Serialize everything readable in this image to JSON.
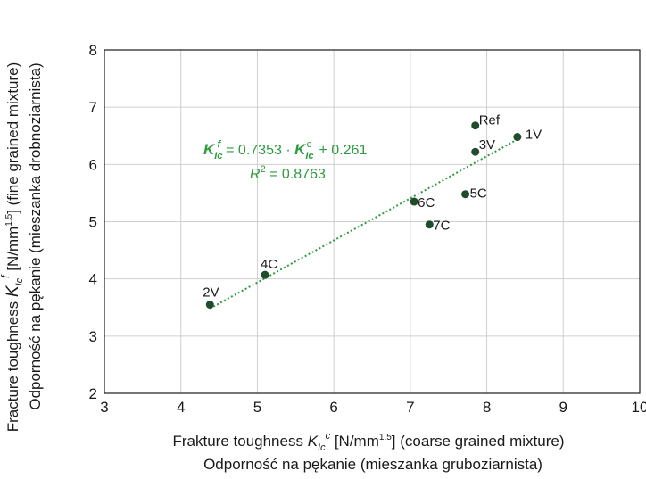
{
  "chart_data": {
    "type": "scatter",
    "title": "",
    "xlabel_line1_prefix": "Frakture toughness ",
    "xlabel_symbol": "K",
    "xlabel_sub": "Ic",
    "xlabel_sup": "c",
    "xlabel_line1_unit": " [N/mm",
    "xlabel_line1_exp": "1.5",
    "xlabel_line1_suffix": "] (coarse grained mixture)",
    "xlabel_line2": "Odporność na pękanie (mieszanka gruboziarnista)",
    "ylabel_line1_prefix": "Fracture toughness ",
    "ylabel_symbol": "K",
    "ylabel_sub": "Ic",
    "ylabel_sup": "f",
    "ylabel_line1_unit": " [N/mm",
    "ylabel_line1_exp": "1.5",
    "ylabel_line1_suffix": "] (fine grained mixture)",
    "ylabel_line2": "Odporność na pękanie (mieszanka drobnoziarnista)",
    "xlim": [
      3,
      10
    ],
    "ylim": [
      2,
      8
    ],
    "xticks": [
      3,
      4,
      5,
      6,
      7,
      8,
      9,
      10
    ],
    "yticks": [
      2,
      3,
      4,
      5,
      6,
      7,
      8
    ],
    "grid": true,
    "point_color": "#1f4d2b",
    "trend_color": "#2e9a3e",
    "points": [
      {
        "label": "Ref",
        "x": 7.85,
        "y": 6.68
      },
      {
        "label": "1V",
        "x": 8.4,
        "y": 6.48
      },
      {
        "label": "3V",
        "x": 7.85,
        "y": 6.22
      },
      {
        "label": "5C",
        "x": 7.72,
        "y": 5.48
      },
      {
        "label": "6C",
        "x": 7.05,
        "y": 5.35
      },
      {
        "label": "7C",
        "x": 7.25,
        "y": 4.95
      },
      {
        "label": "4C",
        "x": 5.1,
        "y": 4.07
      },
      {
        "label": "2V",
        "x": 4.38,
        "y": 3.55
      }
    ],
    "trendline": {
      "type": "linear",
      "slope": 0.7353,
      "intercept": 0.261,
      "x_range": [
        4.38,
        8.4
      ],
      "equation_text": "= 0.7353 · ",
      "equation_tail": " + 0.261",
      "r2_text": " = 0.8763"
    }
  }
}
